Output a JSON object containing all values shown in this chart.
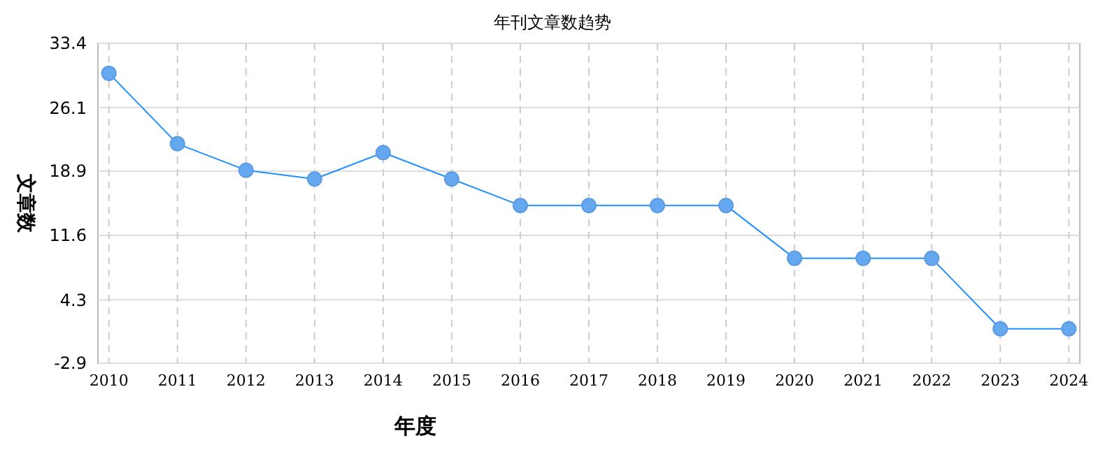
{
  "chart_data": {
    "type": "line",
    "title": "年刊文章数趋势",
    "xlabel": "年度",
    "ylabel": "文章数",
    "categories": [
      "2010",
      "2011",
      "2012",
      "2013",
      "2014",
      "2015",
      "2016",
      "2017",
      "2018",
      "2019",
      "2020",
      "2021",
      "2022",
      "2023",
      "2024"
    ],
    "series": [
      {
        "color": "#1e90ff",
        "values": [
          30,
          22,
          19,
          18,
          21,
          18,
          15,
          15,
          15,
          15,
          9,
          9,
          9,
          1,
          1
        ]
      }
    ],
    "ylim": [
      -2.9,
      33.4
    ],
    "yticks": [
      -2.9,
      4.3,
      11.6,
      18.9,
      26.1,
      33.4
    ],
    "grid": true,
    "marker": "circle",
    "line_style": "solid"
  }
}
